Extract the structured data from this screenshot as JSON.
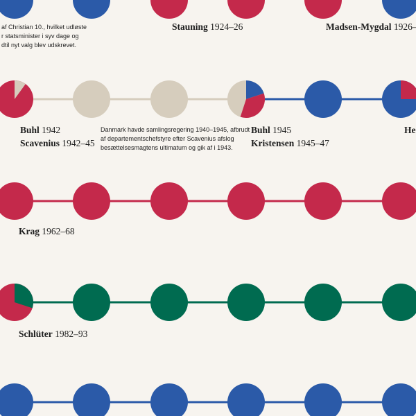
{
  "colors": {
    "red": "#c4294b",
    "blue": "#2b5aa8",
    "green": "#006b50",
    "beige": "#d6cdbd",
    "background": "#f7f4ef"
  },
  "notes": {
    "christian_x": [
      "af Christian 10., hvilket udløste",
      "r statsminister i syv dage og",
      "dtil nyt valg blev udskrevet."
    ],
    "samling": [
      "Danmark havde samlingsregering 1940–1945, afbrudt",
      "af departementschefstyre efter Scavenius afslog",
      "besættelsesmagtens ultimatum og gik af i 1943."
    ]
  },
  "labels": {
    "stauning": {
      "name": "Stauning",
      "years": "1924–26"
    },
    "madsen_mygdal": {
      "name": "Madsen-Mygdal",
      "years": "1926–"
    },
    "buhl_1942": {
      "name": "Buhl",
      "years": "1942"
    },
    "scavenius": {
      "name": "Scavenius",
      "years": "1942–45"
    },
    "buhl_1945": {
      "name": "Buhl",
      "years": "1945"
    },
    "kristensen": {
      "name": "Kristensen",
      "years": "1945–47"
    },
    "hedtoft": {
      "name": "He",
      "years": ""
    },
    "krag": {
      "name": "Krag",
      "years": "1962–68"
    },
    "schluter": {
      "name": "Schlüter",
      "years": "1982–93"
    }
  },
  "rows": [
    {
      "id": "row-1924",
      "circles": [
        {
          "color": "blue"
        },
        {
          "color": "blue"
        },
        {
          "color": "red",
          "pie": [
            {
              "color": "blue",
              "fraction": 0.1
            }
          ]
        },
        {
          "color": "red"
        },
        {
          "color": "red"
        },
        {
          "color": "blue"
        }
      ],
      "links": []
    },
    {
      "id": "row-1942",
      "circles": [
        {
          "color": "red",
          "pie": [
            {
              "color": "beige",
              "fraction": 0.1
            }
          ]
        },
        {
          "color": "beige"
        },
        {
          "color": "beige"
        },
        {
          "color": "beige",
          "pie": [
            {
              "color": "blue",
              "fraction": 0.2
            },
            {
              "color": "red",
              "fraction": 0.35
            }
          ]
        },
        {
          "color": "blue"
        },
        {
          "color": "blue",
          "pie": [
            {
              "color": "red",
              "fraction": 0.25
            }
          ]
        }
      ],
      "links": [
        "beige",
        "beige",
        "beige",
        "blue",
        "blue"
      ]
    },
    {
      "id": "row-1962",
      "circles": [
        {
          "color": "red"
        },
        {
          "color": "red"
        },
        {
          "color": "red"
        },
        {
          "color": "red"
        },
        {
          "color": "red"
        },
        {
          "color": "red"
        }
      ],
      "links": [
        "red",
        "red",
        "red",
        "red",
        "red"
      ]
    },
    {
      "id": "row-1982",
      "circles": [
        {
          "color": "red",
          "pie": [
            {
              "color": "green",
              "fraction": 0.3
            }
          ]
        },
        {
          "color": "green"
        },
        {
          "color": "green"
        },
        {
          "color": "green"
        },
        {
          "color": "green"
        },
        {
          "color": "green"
        }
      ],
      "links": [
        "green",
        "green",
        "green",
        "green",
        "green"
      ]
    },
    {
      "id": "row-2001",
      "circles": [
        {
          "color": "blue"
        },
        {
          "color": "blue"
        },
        {
          "color": "blue"
        },
        {
          "color": "blue"
        },
        {
          "color": "blue"
        },
        {
          "color": "blue"
        }
      ],
      "links": [
        "blue",
        "blue",
        "blue",
        "blue",
        "blue"
      ]
    }
  ]
}
